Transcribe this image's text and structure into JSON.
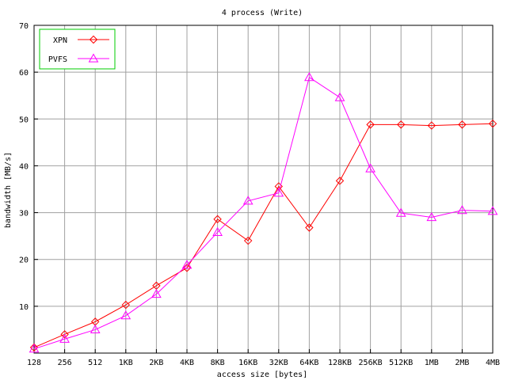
{
  "chart_data": {
    "type": "line",
    "title": "4 process (Write)",
    "xlabel": "access size [bytes]",
    "ylabel": "bandwidth [MB/s]",
    "ylim": [
      0,
      70
    ],
    "y_ticks": [
      10,
      20,
      30,
      40,
      50,
      60,
      70
    ],
    "grid": true,
    "legend_position": "top-left",
    "categories": [
      "128",
      "256",
      "512",
      "1KB",
      "2KB",
      "4KB",
      "8KB",
      "16KB",
      "32KB",
      "64KB",
      "128KB",
      "256KB",
      "512KB",
      "1MB",
      "2MB",
      "4MB"
    ],
    "series": [
      {
        "name": "XPN",
        "color": "#ff0000",
        "marker": "diamond",
        "values": [
          1.2,
          4.0,
          6.7,
          10.3,
          14.4,
          18.2,
          28.6,
          24.0,
          35.6,
          26.8,
          36.8,
          48.8,
          48.8,
          48.6,
          48.8,
          49.0
        ]
      },
      {
        "name": "PVFS",
        "color": "#ff00ff",
        "marker": "triangle",
        "values": [
          0.9,
          3.0,
          5.0,
          8.0,
          12.6,
          18.8,
          25.8,
          32.5,
          34.2,
          58.9,
          54.6,
          39.4,
          29.9,
          29.0,
          30.5,
          30.3
        ]
      }
    ]
  }
}
